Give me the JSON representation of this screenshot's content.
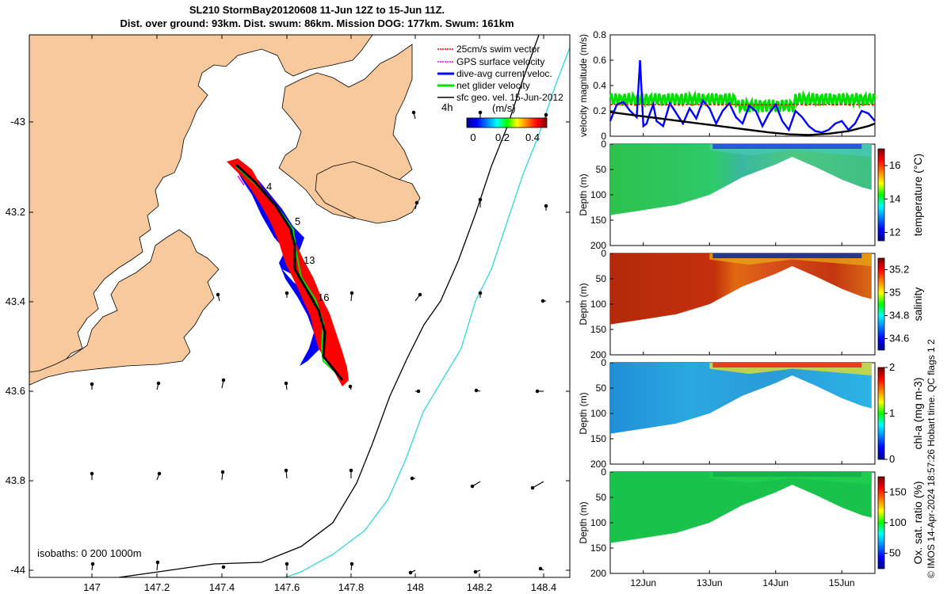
{
  "title": {
    "line1": "SL210 StormBay20120608 11-Jun 12Z to 15-Jun 11Z.",
    "line2": "Dist. over ground: 93km. Dist. swum: 86km. Mission DOG: 177km. Swum: 161km"
  },
  "copyright": "© IMOS 14-Apr-2024 18:57:26 Hobart time. QC flags 1  2",
  "colors": {
    "land": "#f8c99c",
    "swim_vector": "#ff0000",
    "gps_velocity": "#ff00ff",
    "dive_avg_current": "#0000ff",
    "net_glider_velocity": "#00e000",
    "sfc_geo_vel": "#000000",
    "isobath_200": "#000000",
    "isobath_1000": "#30d8d8"
  },
  "map": {
    "x_ticks": [
      "147",
      "147.2",
      "147.4",
      "147.6",
      "147.8",
      "148",
      "148.2",
      "148.4"
    ],
    "y_ticks": [
      "-43",
      "43.2",
      "43.4",
      "43.6",
      "43.8",
      "-44"
    ],
    "legend": [
      {
        "key": "swim",
        "label": "25cm/s swim vector"
      },
      {
        "key": "gps",
        "label": "GPS surface velocity"
      },
      {
        "key": "dive",
        "label": "dive-avg current veloc."
      },
      {
        "key": "net",
        "label": "net glider velocity"
      },
      {
        "key": "sfc",
        "label": "sfc geo. vel. 15-Jun-2012"
      }
    ],
    "colorbar": {
      "label": "(m/s)",
      "ticks": [
        "0",
        "0.2",
        "0.4"
      ],
      "min": 0,
      "max": 0.5
    },
    "time_label": "4h",
    "track_labels": [
      "4",
      "5",
      "13",
      "16"
    ],
    "isobaths_text": "isobaths: 0   200  1000m"
  },
  "chart_data": [
    {
      "type": "line",
      "title": "",
      "ylabel": "velocity magnitude (m/s)",
      "ylim": [
        0,
        0.8
      ],
      "y_ticks": [
        "0",
        "0.2",
        "0.4",
        "0.6",
        "0.8"
      ],
      "x_ticks": [
        "12Jun",
        "13Jun",
        "14Jun",
        "15Jun"
      ],
      "series": [
        {
          "name": "dive-avg current veloc.",
          "color": "#0000ff",
          "x": [
            11.5,
            11.6,
            11.7,
            11.8,
            11.9,
            11.95,
            12.0,
            12.05,
            12.1,
            12.15,
            12.2,
            12.3,
            12.4,
            12.5,
            12.6,
            12.7,
            12.8,
            12.9,
            13.0,
            13.1,
            13.2,
            13.3,
            13.4,
            13.5,
            13.6,
            13.7,
            13.8,
            13.9,
            14.0,
            14.1,
            14.2,
            14.3,
            14.4,
            14.5,
            14.6,
            14.7,
            14.8,
            14.9,
            15.0,
            15.1,
            15.2,
            15.3,
            15.4,
            15.5
          ],
          "y": [
            0.12,
            0.25,
            0.27,
            0.2,
            0.15,
            0.6,
            0.08,
            0.1,
            0.18,
            0.25,
            0.12,
            0.08,
            0.26,
            0.18,
            0.1,
            0.22,
            0.14,
            0.28,
            0.22,
            0.1,
            0.2,
            0.26,
            0.15,
            0.1,
            0.24,
            0.2,
            0.08,
            0.18,
            0.25,
            0.12,
            0.05,
            0.2,
            0.15,
            0.08,
            0.04,
            0.03,
            0.05,
            0.1,
            0.12,
            0.05,
            0.1,
            0.2,
            0.18,
            0.12
          ]
        },
        {
          "name": "sfc geo. vel.",
          "color": "#000000",
          "x": [
            11.5,
            11.8,
            12.1,
            12.4,
            12.7,
            13.0,
            13.3,
            13.6,
            13.9,
            14.2,
            14.5,
            14.8,
            15.1,
            15.4,
            15.5
          ],
          "y": [
            0.19,
            0.17,
            0.15,
            0.13,
            0.11,
            0.09,
            0.07,
            0.05,
            0.03,
            0.015,
            0.01,
            0.02,
            0.04,
            0.08,
            0.1
          ]
        },
        {
          "name": "25cm/s swim vector",
          "color": "#ff0000",
          "x": [
            11.5,
            15.5
          ],
          "y": [
            0.25,
            0.25
          ]
        }
      ]
    },
    {
      "type": "heatmap",
      "ylabel": "Depth (m)",
      "y_ticks": [
        "0",
        "50",
        "100",
        "150",
        "200"
      ],
      "colorbar_label": "temperature (°C)",
      "colorbar_ticks": [
        "12",
        "14",
        "16"
      ],
      "clim": [
        11.5,
        17
      ]
    },
    {
      "type": "heatmap",
      "ylabel": "Depth (m)",
      "y_ticks": [
        "0",
        "50",
        "100",
        "150",
        "200"
      ],
      "colorbar_label": "salinity",
      "colorbar_ticks": [
        "34.6",
        "34.8",
        "35",
        "35.2"
      ],
      "clim": [
        34.5,
        35.3
      ]
    },
    {
      "type": "heatmap",
      "ylabel": "Depth (m)",
      "y_ticks": [
        "0",
        "50",
        "100",
        "150",
        "200"
      ],
      "colorbar_label": "chl-a (mg m-3)",
      "colorbar_ticks": [
        "0",
        "1",
        "2"
      ],
      "clim": [
        0,
        2
      ]
    },
    {
      "type": "heatmap",
      "ylabel": "Depth (m)",
      "y_ticks": [
        "0",
        "50",
        "100",
        "150",
        "200"
      ],
      "colorbar_label": "Ox. sat. ratio (%)",
      "colorbar_ticks": [
        "50",
        "100",
        "150"
      ],
      "clim": [
        25,
        175
      ]
    }
  ]
}
